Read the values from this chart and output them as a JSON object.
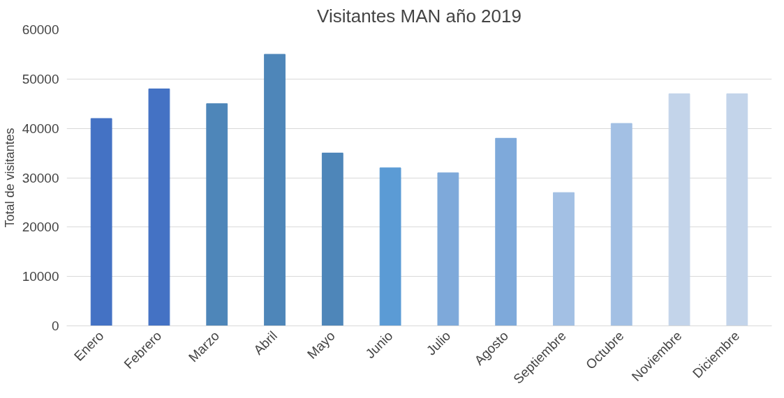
{
  "chart_data": {
    "type": "bar",
    "title": "Visitantes MAN año 2019",
    "ylabel": "Total de visitantes",
    "categories": [
      "Enero",
      "Febrero",
      "Marzo",
      "Abril",
      "Mayo",
      "Junio",
      "Julio",
      "Agosto",
      "Septiembre",
      "Octubre",
      "Noviembre",
      "Diciembre"
    ],
    "values": [
      42000,
      48000,
      45000,
      55000,
      35000,
      32000,
      31000,
      38000,
      27000,
      41000,
      47000,
      47000
    ],
    "colors": [
      "#4472c4",
      "#4472c4",
      "#4e86b9",
      "#4e86b9",
      "#4e86b9",
      "#5b9bd5",
      "#7ea9da",
      "#7ea9da",
      "#a3c0e4",
      "#a3c0e4",
      "#c3d4ea",
      "#c3d4ea"
    ],
    "ylim": [
      0,
      60000
    ],
    "yticks": [
      0,
      10000,
      20000,
      30000,
      40000,
      50000,
      60000
    ],
    "grid": "y"
  }
}
